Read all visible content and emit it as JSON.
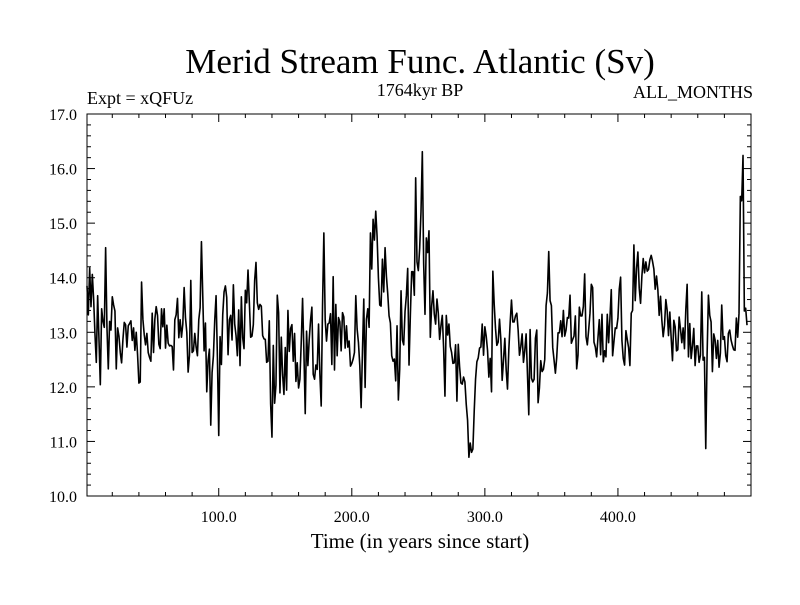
{
  "chart_data": {
    "type": "line",
    "title": "Merid Stream Func. Atlantic (Sv)",
    "subtitle": "1764kyr BP",
    "left_label": "Expt = xQFUz",
    "right_label": "ALL_MONTHS",
    "xlabel": "Time (in years since start)",
    "ylabel": "",
    "xlim": [
      1,
      500
    ],
    "ylim": [
      10.0,
      17.0
    ],
    "xticks_major": [
      100,
      200,
      300,
      400
    ],
    "xtick_labels": [
      "100.0",
      "200.0",
      "300.0",
      "400.0"
    ],
    "yticks": [
      10,
      11,
      12,
      13,
      14,
      15,
      16,
      17
    ],
    "ytick_labels": [
      "10.0",
      "11.0",
      "12.0",
      "13.0",
      "14.0",
      "15.0",
      "16.0",
      "17.0"
    ],
    "grid": false,
    "series": [
      {
        "name": "Merid Stream Func. Atlantic",
        "color": "#000000",
        "x_start": 1,
        "x_step": 1,
        "values": [
          13.85,
          13.32,
          14.18,
          13.47,
          14.06,
          13.6,
          12.96,
          12.45,
          13.67,
          12.87,
          12.04,
          13.43,
          13.2,
          13.09,
          14.55,
          13.09,
          12.33,
          13.2,
          13.04,
          13.65,
          13.5,
          13.39,
          12.33,
          13.08,
          12.93,
          12.63,
          12.44,
          12.87,
          13.18,
          13.14,
          12.73,
          13.12,
          13.16,
          13.21,
          12.85,
          13.08,
          12.67,
          13.0,
          12.59,
          12.07,
          12.09,
          13.92,
          13.24,
          12.96,
          12.77,
          12.98,
          12.63,
          12.54,
          12.47,
          13.35,
          12.63,
          13.24,
          13.47,
          13.31,
          12.78,
          12.7,
          13.43,
          13.1,
          13.43,
          12.71,
          13.13,
          12.8,
          12.75,
          12.76,
          12.74,
          12.31,
          13.23,
          13.32,
          13.62,
          12.9,
          13.23,
          12.91,
          13.15,
          13.82,
          13.27,
          13.0,
          12.27,
          12.58,
          13.95,
          12.63,
          12.66,
          12.98,
          12.73,
          12.57,
          13.23,
          13.45,
          14.66,
          13.66,
          12.66,
          13.17,
          11.91,
          12.48,
          12.69,
          11.3,
          12.26,
          12.57,
          13.22,
          13.67,
          12.55,
          11.11,
          12.92,
          12.41,
          13.32,
          13.74,
          13.85,
          13.64,
          12.59,
          13.23,
          13.31,
          12.86,
          13.87,
          13.15,
          12.94,
          12.57,
          13.41,
          12.39,
          13.65,
          12.9,
          12.7,
          13.77,
          13.54,
          14.14,
          13.55,
          12.91,
          12.93,
          13.14,
          13.95,
          14.28,
          13.54,
          13.42,
          13.51,
          13.48,
          12.94,
          12.88,
          12.87,
          12.45,
          12.47,
          13.21,
          11.69,
          11.08,
          12.76,
          11.7,
          12.03,
          13.68,
          13.36,
          11.89,
          12.91,
          12.22,
          11.86,
          12.72,
          11.94,
          13.4,
          12.65,
          13.07,
          13.14,
          12.47,
          12.98,
          12.1,
          12.44,
          11.98,
          12.14,
          12.82,
          13.62,
          12.65,
          11.51,
          13.02,
          12.39,
          12.87,
          13.22,
          13.46,
          12.23,
          12.14,
          12.4,
          12.32,
          13.15,
          12.24,
          11.65,
          13.48,
          14.82,
          13.23,
          12.84,
          13.15,
          13.17,
          13.34,
          12.41,
          14.02,
          12.31,
          13.51,
          12.57,
          13.27,
          13.19,
          12.66,
          13.36,
          13.28,
          12.71,
          13.12,
          12.73,
          12.84,
          12.38,
          12.43,
          12.51,
          12.63,
          13.67,
          13.06,
          12.81,
          12.39,
          11.62,
          12.64,
          13.61,
          11.99,
          13.24,
          13.43,
          13.09,
          14.82,
          14.16,
          15.07,
          14.69,
          15.22,
          14.76,
          14.0,
          13.5,
          13.48,
          14.34,
          13.74,
          14.55,
          14.03,
          13.71,
          13.3,
          13.17,
          12.57,
          12.47,
          12.51,
          12.11,
          13.12,
          11.76,
          12.33,
          13.76,
          12.86,
          12.77,
          13.38,
          13.67,
          14.17,
          12.4,
          13.31,
          14.11,
          14.11,
          13.68,
          15.83,
          14.29,
          14.13,
          14.54,
          15.21,
          16.31,
          14.26,
          13.33,
          14.73,
          14.46,
          14.86,
          12.91,
          13.48,
          13.76,
          13.33,
          13.15,
          13.61,
          13.35,
          12.87,
          13.12,
          13.31,
          12.71,
          11.83,
          13.31,
          12.95,
          13.15,
          12.74,
          12.63,
          12.43,
          12.44,
          12.77,
          11.74,
          12.78,
          12.37,
          12.07,
          12.05,
          12.18,
          12.09,
          11.68,
          11.39,
          10.71,
          10.97,
          10.8,
          10.86,
          11.56,
          12.14,
          12.46,
          12.53,
          12.71,
          12.73,
          13.15,
          12.58,
          13.1,
          12.93,
          12.67,
          12.18,
          12.52,
          11.91,
          14.12,
          13.52,
          13.07,
          12.76,
          12.82,
          13.24,
          12.87,
          12.12,
          12.49,
          12.89,
          12.32,
          11.96,
          12.68,
          13.17,
          13.59,
          13.19,
          13.19,
          13.3,
          13.35,
          13.04,
          12.58,
          12.74,
          12.97,
          12.45,
          12.67,
          12.97,
          12.24,
          11.49,
          13.05,
          12.16,
          12.09,
          12.14,
          12.89,
          13.04,
          11.71,
          11.98,
          12.48,
          12.28,
          12.32,
          12.5,
          13.49,
          13.72,
          14.48,
          13.58,
          13.49,
          12.72,
          12.49,
          12.25,
          12.54,
          12.99,
          12.99,
          13.21,
          12.92,
          13.4,
          12.93,
          13.04,
          13.27,
          13.26,
          13.68,
          12.8,
          12.87,
          12.93,
          13.3,
          12.33,
          12.58,
          13.46,
          13.3,
          13.3,
          13.47,
          14.07,
          12.92,
          12.77,
          13.04,
          13.35,
          13.88,
          13.82,
          12.82,
          12.73,
          12.55,
          12.9,
          13.23,
          12.59,
          13.33,
          12.46,
          12.66,
          12.55,
          13.33,
          12.81,
          13.26,
          13.78,
          12.57,
          12.83,
          13.08,
          13.07,
          13.26,
          13.79,
          14.01,
          12.85,
          12.52,
          12.4,
          13.03,
          12.87,
          12.72,
          12.39,
          13.35,
          13.4,
          14.6,
          13.58,
          14.17,
          14.47,
          13.81,
          13.53,
          14.03,
          14.35,
          14.09,
          14.29,
          14.12,
          14.15,
          14.33,
          14.41,
          14.3,
          14.16,
          13.79,
          14.03,
          13.78,
          13.31,
          13.66,
          13.22,
          12.92,
          13.13,
          13.6,
          13.4,
          12.94,
          13.37,
          12.9,
          12.48,
          13.22,
          13.1,
          12.66,
          12.68,
          13.28,
          13.06,
          12.81,
          13.08,
          12.7,
          13.41,
          13.88,
          12.55,
          13.16,
          12.52,
          12.75,
          13.07,
          12.39,
          12.75,
          12.75,
          12.45,
          12.58,
          13.74,
          12.49,
          12.54,
          10.87,
          12.58,
          13.68,
          13.31,
          13.19,
          12.28,
          12.97,
          12.86,
          12.52,
          12.85,
          12.36,
          12.62,
          13.5,
          12.87,
          12.92,
          12.57,
          12.46,
          12.98,
          13.04,
          12.86,
          12.76,
          12.68,
          12.67,
          13.26,
          12.91,
          13.35,
          15.49,
          15.41,
          16.24,
          13.39,
          13.44,
          13.13
        ]
      }
    ]
  }
}
